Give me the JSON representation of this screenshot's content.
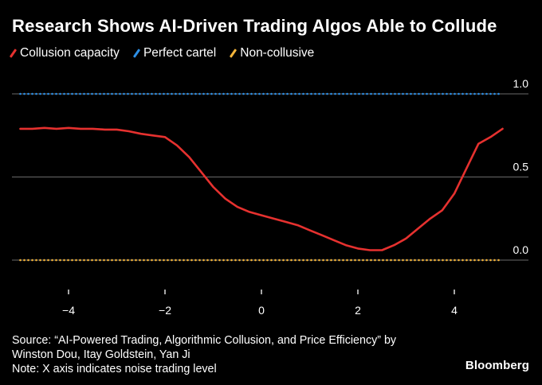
{
  "chart_data": {
    "type": "line",
    "title": "Research Shows AI-Driven Trading Algos Able to Collude",
    "xlabel": "",
    "ylabel": "",
    "xlim": [
      -5,
      5
    ],
    "ylim": [
      0,
      1
    ],
    "x_ticks": [
      "-4",
      "-2",
      "0",
      "2",
      "4"
    ],
    "y_ticks": [
      "0.0",
      "0.5",
      "1.0"
    ],
    "grid": "horizontal",
    "legend_position": "top-left",
    "series": [
      {
        "name": "Collusion capacity",
        "color": "#e6312f",
        "style": "solid",
        "x": [
          -5,
          -4.75,
          -4.5,
          -4.25,
          -4,
          -3.75,
          -3.5,
          -3.25,
          -3,
          -2.75,
          -2.5,
          -2.25,
          -2,
          -1.75,
          -1.5,
          -1.25,
          -1,
          -0.75,
          -0.5,
          -0.25,
          0,
          0.25,
          0.5,
          0.75,
          1,
          1.25,
          1.5,
          1.75,
          2,
          2.25,
          2.5,
          2.75,
          3,
          3.25,
          3.5,
          3.75,
          4,
          4.25,
          4.5,
          4.75,
          5
        ],
        "y": [
          0.79,
          0.79,
          0.795,
          0.79,
          0.795,
          0.79,
          0.79,
          0.785,
          0.785,
          0.775,
          0.76,
          0.75,
          0.74,
          0.69,
          0.62,
          0.53,
          0.44,
          0.37,
          0.32,
          0.29,
          0.27,
          0.25,
          0.23,
          0.21,
          0.18,
          0.15,
          0.12,
          0.09,
          0.07,
          0.06,
          0.06,
          0.09,
          0.13,
          0.19,
          0.25,
          0.3,
          0.4,
          0.55,
          0.7,
          0.74,
          0.79
        ]
      },
      {
        "name": "Perfect cartel",
        "color": "#2d8fe6",
        "style": "dotted",
        "x": [
          -5,
          5
        ],
        "y": [
          1.0,
          1.0
        ]
      },
      {
        "name": "Non-collusive",
        "color": "#f3b43a",
        "style": "dotted",
        "x": [
          -5,
          5
        ],
        "y": [
          0.0,
          0.0
        ]
      }
    ]
  },
  "source_lines": [
    "Source: “AI-Powered Trading, Algorithmic Collusion, and Price Efficiency” by",
    "Winston Dou, Itay Goldstein, Yan Ji",
    "Note: X axis indicates noise trading level"
  ],
  "brand": "Bloomberg"
}
